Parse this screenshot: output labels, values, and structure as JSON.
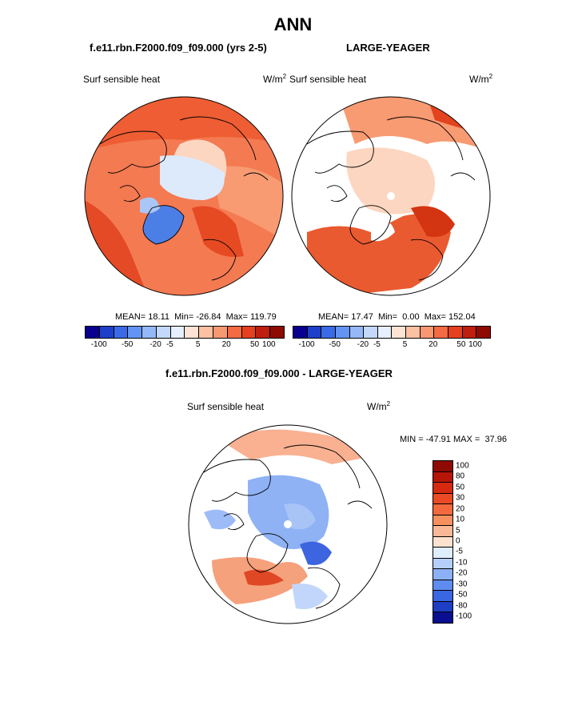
{
  "page": {
    "title": "ANN",
    "left_panel_title": "f.e11.rbn.F2000.f09_f09.000 (yrs 2-5)",
    "right_panel_title": "LARGE-YEAGER",
    "diff_panel_title": "f.e11.rbn.F2000.f09_f09.000 - LARGE-YEAGER"
  },
  "chart_data": [
    {
      "type": "heatmap",
      "projection": "polar-stereographic (north)",
      "title": "f.e11.rbn.F2000.f09_f09.000 (yrs 2-5)",
      "variable": "Surf sensible heat",
      "units": "W/m",
      "units_exp": "2",
      "stats": {
        "mean_label": "MEAN=",
        "mean": "18.11",
        "min_label": "Min=",
        "min": "-26.84",
        "max_label": "Max=",
        "max": "119.79"
      },
      "colorbar_ticks": [
        "-100",
        "-50",
        "-20",
        "-5",
        "5",
        "20",
        "50",
        "100"
      ],
      "colorbar_colors": [
        "#08008f",
        "#1d3fc9",
        "#3a6ae6",
        "#6394f5",
        "#95b8f8",
        "#c3d8fb",
        "#e6effd",
        "#fde3d3",
        "#fbc1a3",
        "#f89873",
        "#f36a43",
        "#e5401f",
        "#c01e0e",
        "#8f0a02"
      ]
    },
    {
      "type": "heatmap",
      "projection": "polar-stereographic (north)",
      "title": "LARGE-YEAGER",
      "variable": "Surf sensible heat",
      "units": "W/m",
      "units_exp": "2",
      "stats": {
        "mean_label": "MEAN=",
        "mean": "17.47",
        "min_label": "Min=",
        "min": "0.00",
        "max_label": "Max=",
        "max": "152.04"
      },
      "colorbar_ticks": [
        "-100",
        "-50",
        "-20",
        "-5",
        "5",
        "20",
        "50",
        "100"
      ],
      "colorbar_colors": [
        "#08008f",
        "#1d3fc9",
        "#3a6ae6",
        "#6394f5",
        "#95b8f8",
        "#c3d8fb",
        "#e6effd",
        "#fde3d3",
        "#fbc1a3",
        "#f89873",
        "#f36a43",
        "#e5401f",
        "#c01e0e",
        "#8f0a02"
      ]
    },
    {
      "type": "heatmap",
      "projection": "polar-stereographic (north)",
      "title": "f.e11.rbn.F2000.f09_f09.000 - LARGE-YEAGER",
      "variable": "Surf sensible heat",
      "units": "W/m",
      "units_exp": "2",
      "stats": {
        "min_label": "MIN =",
        "min": "-47.91",
        "max_label": "MAX =",
        "max": "37.96"
      },
      "colorbar_labels": [
        "100",
        "80",
        "50",
        "30",
        "20",
        "10",
        "5",
        "0",
        "-5",
        "-10",
        "-20",
        "-30",
        "-50",
        "-80",
        "-100"
      ],
      "colorbar_colors": [
        "#8f0a02",
        "#b81509",
        "#d62a10",
        "#ea4a24",
        "#f26a3e",
        "#f6915f",
        "#fab896",
        "#fde2cf",
        "#dfeefd",
        "#b6cffa",
        "#8cb0f5",
        "#5f8cef",
        "#3a66e2",
        "#1e3ec4",
        "#0a0e90"
      ]
    }
  ]
}
